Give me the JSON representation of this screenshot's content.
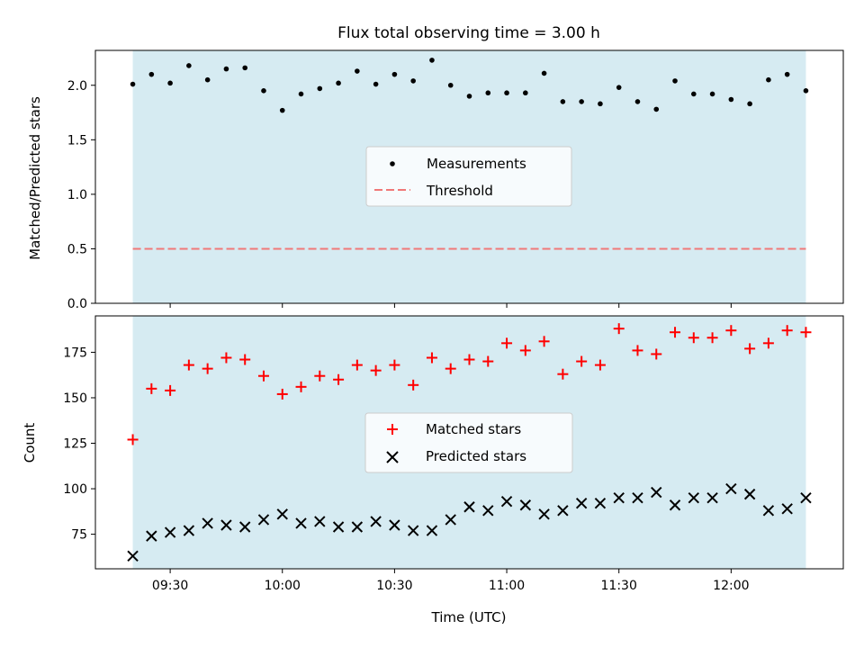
{
  "chart_data": [
    {
      "type": "scatter",
      "title": "Flux total observing time = 3.00 h",
      "ylabel": "Matched/Predicted stars",
      "xlabel": "",
      "ylim": [
        0,
        2.32
      ],
      "yticks": [
        "0.0",
        "0.5",
        "1.0",
        "1.5",
        "2.0"
      ],
      "ytick_values": [
        0,
        0.5,
        1.0,
        1.5,
        2.0
      ],
      "x_minutes_from_0900": [
        20,
        25,
        30,
        35,
        40,
        45,
        50,
        55,
        60,
        65,
        70,
        75,
        80,
        85,
        90,
        95,
        100,
        105,
        110,
        115,
        120,
        125,
        130,
        135,
        140,
        145,
        150,
        155,
        160,
        165,
        170,
        175,
        180,
        185,
        190,
        195,
        200
      ],
      "series": [
        {
          "name": "Measurements",
          "marker": "dot",
          "color": "#000000",
          "values": [
            2.01,
            2.1,
            2.02,
            2.18,
            2.05,
            2.15,
            2.16,
            1.95,
            1.77,
            1.92,
            1.97,
            2.02,
            2.13,
            2.01,
            2.1,
            2.04,
            2.23,
            2.0,
            1.9,
            1.93,
            1.93,
            1.93,
            2.11,
            1.85,
            1.85,
            1.83,
            1.98,
            1.85,
            1.78,
            2.04,
            1.92,
            1.92,
            1.87,
            1.83,
            2.05,
            2.1,
            1.95
          ]
        },
        {
          "name": "Threshold",
          "marker": "dashed-line",
          "color": "#f07878",
          "values": [
            0.5
          ]
        }
      ],
      "legend": "center",
      "shaded_span_minutes": [
        20,
        200
      ]
    },
    {
      "type": "scatter",
      "title": "",
      "ylabel": "Count",
      "xlabel": "Time (UTC)",
      "ylim": [
        56,
        195
      ],
      "yticks": [
        "75",
        "100",
        "125",
        "150",
        "175"
      ],
      "ytick_values": [
        75,
        100,
        125,
        150,
        175
      ],
      "xlim_minutes": [
        10,
        210
      ],
      "xticks": [
        "09:30",
        "10:00",
        "10:30",
        "11:00",
        "11:30",
        "12:00"
      ],
      "xtick_minutes": [
        30,
        60,
        90,
        120,
        150,
        180
      ],
      "x_minutes_from_0900": [
        20,
        25,
        30,
        35,
        40,
        45,
        50,
        55,
        60,
        65,
        70,
        75,
        80,
        85,
        90,
        95,
        100,
        105,
        110,
        115,
        120,
        125,
        130,
        135,
        140,
        145,
        150,
        155,
        160,
        165,
        170,
        175,
        180,
        185,
        190,
        195,
        200
      ],
      "series": [
        {
          "name": "Matched stars",
          "marker": "plus",
          "color": "#ff0000",
          "values": [
            127,
            155,
            154,
            168,
            166,
            172,
            171,
            162,
            152,
            156,
            162,
            160,
            168,
            165,
            168,
            157,
            172,
            166,
            171,
            170,
            180,
            176,
            181,
            163,
            170,
            168,
            188,
            176,
            174,
            186,
            183,
            183,
            187,
            177,
            180,
            187,
            186
          ]
        },
        {
          "name": "Predicted stars",
          "marker": "x",
          "color": "#000000",
          "values": [
            63,
            74,
            76,
            77,
            81,
            80,
            79,
            83,
            86,
            81,
            82,
            79,
            79,
            82,
            80,
            77,
            77,
            83,
            90,
            88,
            93,
            91,
            86,
            88,
            92,
            92,
            95,
            95,
            98,
            91,
            95,
            95,
            100,
            97,
            88,
            89,
            95
          ]
        }
      ],
      "legend": "center",
      "shaded_span_minutes": [
        20,
        200
      ]
    }
  ],
  "colors": {
    "shade": "#add8e6",
    "legend_bg": "#ffffff",
    "legend_edge": "#cccccc"
  }
}
